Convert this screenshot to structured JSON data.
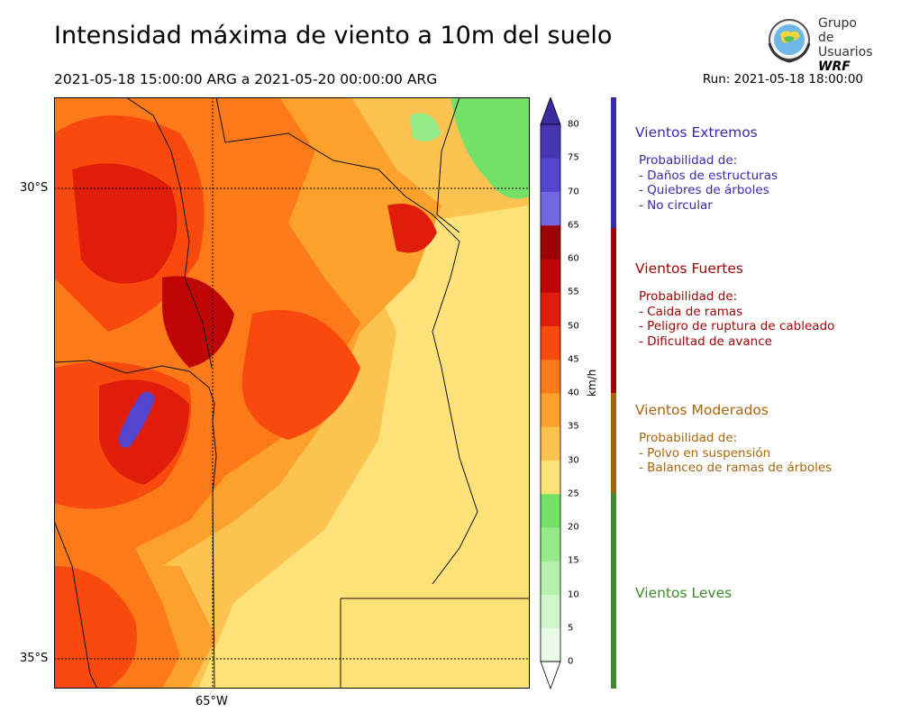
{
  "header": {
    "title": "Intensidad máxima de viento a 10m del suelo",
    "period": "2021-05-18 15:00:00 ARG  a  2021-05-20 00:00:00 ARG",
    "run": "Run: 2021-05-18 18:00:00"
  },
  "logo": {
    "line1": "Grupo de",
    "line2": "Usuarios",
    "line3": "WRF"
  },
  "map": {
    "lat_labels": [
      "30°S",
      "35°S"
    ],
    "lon_labels": [
      "65°W"
    ]
  },
  "colorbar": {
    "unit": "km/h",
    "ticks": [
      "80",
      "75",
      "70",
      "65",
      "60",
      "55",
      "50",
      "45",
      "40",
      "35",
      "30",
      "25",
      "20",
      "15",
      "10",
      "5",
      "0"
    ],
    "levels": [
      0,
      5,
      10,
      15,
      20,
      25,
      30,
      35,
      40,
      45,
      50,
      55,
      60,
      65,
      70,
      75,
      80
    ],
    "colors": [
      "#e8fbe6",
      "#d2f6cc",
      "#b5f1ad",
      "#95eb88",
      "#74e068",
      "#fde27a",
      "#fdc350",
      "#fca22c",
      "#fc7a1a",
      "#f84a0e",
      "#e01d0a",
      "#be0606",
      "#9a0404",
      "#7167e0",
      "#5546cf",
      "#4736b4"
    ],
    "extend_min_color": "#ffffff",
    "extend_max_color": "#3a2ba0"
  },
  "categories": [
    {
      "title": "Vientos Extremos",
      "color": "#3a2ab0",
      "items": [
        "Probabilidad de:",
        "- Daños de estructuras",
        "- Quiebres de árboles",
        "- No circular"
      ]
    },
    {
      "title": "Vientos Fuertes",
      "color": "#9d0303",
      "items": [
        "Probabilidad de:",
        "- Caida de ramas",
        "- Peligro de ruptura de cableado",
        "- Dificultad de avance"
      ]
    },
    {
      "title": "Vientos Moderados",
      "color": "#a8650c",
      "items": [
        "Probabilidad de:",
        "- Polvo en suspensión",
        "- Balanceo de ramas de árboles"
      ]
    },
    {
      "title": "Vientos Leves",
      "color": "#3e8a2c",
      "items": []
    }
  ]
}
